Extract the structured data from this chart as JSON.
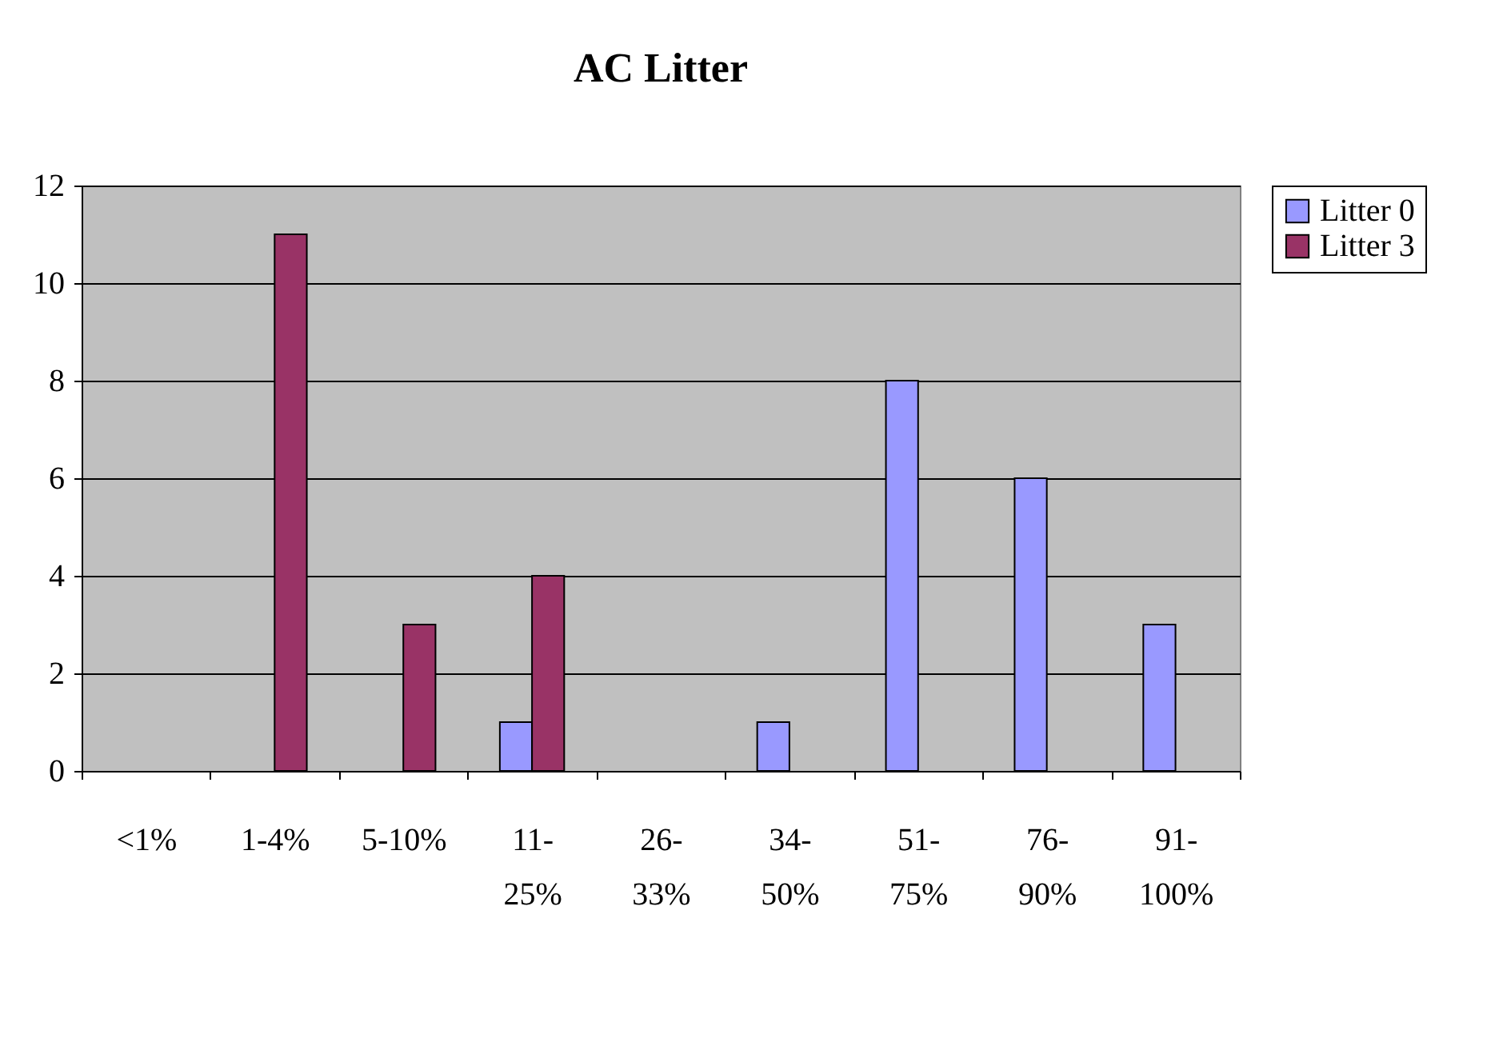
{
  "chart_data": {
    "type": "bar",
    "title": "AC Litter",
    "categories": [
      "<1%",
      "1-4%",
      "5-10%",
      "11-25%",
      "26-33%",
      "34-50%",
      "51-75%",
      "76-90%",
      "91-100%"
    ],
    "series": [
      {
        "name": "Litter 0",
        "color": "#9999ff",
        "values": [
          0,
          0,
          0,
          1,
          0,
          1,
          8,
          6,
          3
        ]
      },
      {
        "name": "Litter 3",
        "color": "#993366",
        "values": [
          0,
          11,
          3,
          4,
          0,
          0,
          0,
          0,
          0
        ]
      }
    ],
    "ylim": [
      0,
      12
    ],
    "yticks": [
      0,
      2,
      4,
      6,
      8,
      10,
      12
    ],
    "grid": "y",
    "legend": "right"
  }
}
